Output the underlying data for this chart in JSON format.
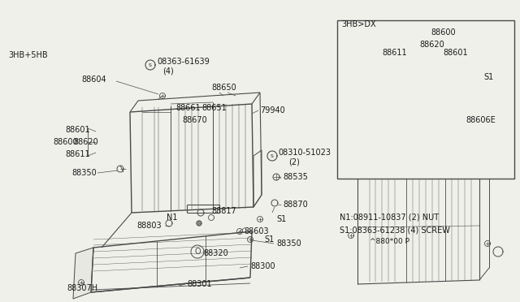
{
  "bg_color": "#f0f0eb",
  "line_color": "#4a4a4a",
  "text_color": "#1a1a1a",
  "footer": "^880*00 P",
  "notes": [
    "N1:08911-10837 (2) NUT",
    "S1:08363-61238 (4) SCREW"
  ]
}
